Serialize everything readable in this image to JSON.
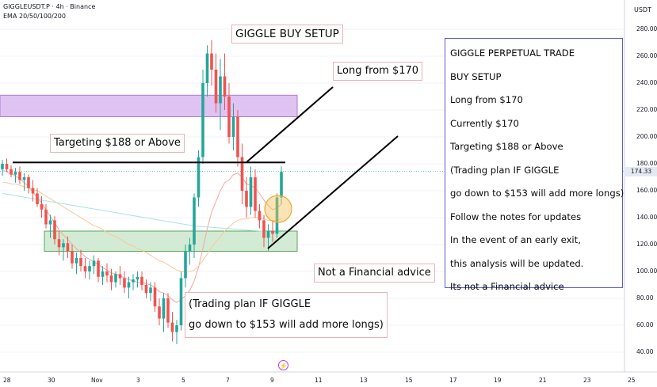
{
  "header": {
    "symbol_line": "GIGGLEUSDT.P · 4h · Binance",
    "indicator_line": "EMA 20/50/100/200",
    "currency": "USDT"
  },
  "annotations": {
    "buy_setup": "GIGGLE BUY SETUP",
    "long_from": "Long from $170",
    "targeting": "Targeting $188 or Above",
    "not_advice": "Not a Financial advice",
    "plan_line1": "(Trading plan IF GIGGLE",
    "plan_line2": "go down to $153 will add more longs)"
  },
  "trade_box": {
    "lines": [
      "GIGGLE PERPETUAL TRADE",
      "BUY SETUP",
      "Long from $170",
      "Currently $170",
      "Targeting $188 or Above",
      "(Trading plan IF GIGGLE",
      "go down to $153 will add more longs)",
      "Follow the notes for updates",
      "In the event of an early exit,",
      "this analysis will be updated.",
      "Its not a Financial advice"
    ]
  },
  "icons": {
    "events": "lightning-icon"
  },
  "colors": {
    "up": "#26a69a",
    "down": "#ef5350",
    "target_zone": "#d9b8f0",
    "entry_zone": "#c8e6c9",
    "ema_fast": "#f4a6a0",
    "ema_slow": "#f9c89a"
  },
  "chart_data": {
    "type": "candlestick",
    "y_axis": {
      "range": [
        30,
        290
      ],
      "ticks": [
        "280.00",
        "260.00",
        "240.00",
        "220.00",
        "200.00",
        "180.00",
        "160.00",
        "140.00",
        "120.00",
        "100.00",
        "80.00",
        "60.00",
        "40.00"
      ],
      "current_price_label": "174.33",
      "current_price": 174.33
    },
    "x_axis": {
      "ticks": [
        "28",
        "30",
        "Nov",
        "3",
        "5",
        "7",
        "9",
        "11",
        "13",
        "15",
        "17",
        "19",
        "21",
        "23",
        "25"
      ]
    },
    "zones": [
      {
        "name": "target-zone",
        "low": 215,
        "high": 231
      },
      {
        "name": "entry-zone",
        "low": 115,
        "high": 130
      }
    ],
    "lines": [
      {
        "name": "resistance-line",
        "price": 181
      }
    ],
    "candles": [
      [
        176,
        183,
        171,
        180
      ],
      [
        180,
        184,
        174,
        176
      ],
      [
        176,
        179,
        170,
        172
      ],
      [
        172,
        177,
        166,
        174
      ],
      [
        174,
        178,
        165,
        168
      ],
      [
        168,
        173,
        160,
        170
      ],
      [
        170,
        172,
        158,
        162
      ],
      [
        162,
        168,
        152,
        158
      ],
      [
        158,
        162,
        148,
        150
      ],
      [
        150,
        156,
        140,
        146
      ],
      [
        146,
        150,
        132,
        135
      ],
      [
        135,
        142,
        125,
        138
      ],
      [
        138,
        141,
        120,
        124
      ],
      [
        124,
        130,
        112,
        118
      ],
      [
        118,
        124,
        108,
        121
      ],
      [
        121,
        126,
        110,
        115
      ],
      [
        115,
        120,
        102,
        106
      ],
      [
        106,
        114,
        98,
        110
      ],
      [
        110,
        116,
        100,
        104
      ],
      [
        104,
        110,
        95,
        100
      ],
      [
        100,
        108,
        94,
        104
      ],
      [
        104,
        112,
        98,
        108
      ],
      [
        108,
        110,
        92,
        96
      ],
      [
        96,
        104,
        90,
        100
      ],
      [
        100,
        106,
        92,
        97
      ],
      [
        97,
        102,
        86,
        92
      ],
      [
        92,
        100,
        88,
        98
      ],
      [
        98,
        104,
        90,
        95
      ],
      [
        95,
        100,
        84,
        88
      ],
      [
        88,
        96,
        80,
        92
      ],
      [
        92,
        98,
        86,
        94
      ],
      [
        94,
        100,
        88,
        96
      ],
      [
        96,
        100,
        86,
        90
      ],
      [
        90,
        94,
        80,
        84
      ],
      [
        84,
        92,
        78,
        88
      ],
      [
        88,
        92,
        70,
        74
      ],
      [
        74,
        80,
        60,
        65
      ],
      [
        65,
        84,
        55,
        80
      ],
      [
        80,
        84,
        58,
        62
      ],
      [
        62,
        70,
        48,
        55
      ],
      [
        55,
        64,
        46,
        60
      ],
      [
        60,
        100,
        56,
        95
      ],
      [
        95,
        120,
        88,
        115
      ],
      [
        115,
        125,
        105,
        120
      ],
      [
        120,
        158,
        110,
        155
      ],
      [
        155,
        190,
        148,
        185
      ],
      [
        185,
        250,
        180,
        240
      ],
      [
        240,
        268,
        230,
        262
      ],
      [
        262,
        272,
        238,
        250
      ],
      [
        250,
        262,
        218,
        225
      ],
      [
        225,
        258,
        205,
        245
      ],
      [
        245,
        262,
        220,
        230
      ],
      [
        230,
        240,
        195,
        200
      ],
      [
        200,
        225,
        190,
        215
      ],
      [
        215,
        220,
        178,
        185
      ],
      [
        185,
        195,
        150,
        160
      ],
      [
        160,
        170,
        140,
        148
      ],
      [
        148,
        178,
        142,
        170
      ],
      [
        170,
        176,
        140,
        145
      ],
      [
        145,
        150,
        132,
        138
      ],
      [
        138,
        142,
        118,
        125
      ],
      [
        125,
        135,
        115,
        130
      ],
      [
        130,
        138,
        122,
        128
      ],
      [
        128,
        158,
        125,
        155
      ],
      [
        155,
        178,
        150,
        174
      ]
    ],
    "ema_series": [
      {
        "name": "EMA 20",
        "values": [
          175,
          174,
          173,
          171,
          169,
          166,
          163,
          159,
          155,
          151,
          146,
          141,
          136,
          131,
          127,
          124,
          120,
          117,
          114,
          111,
          109,
          107,
          105,
          103,
          101,
          99,
          98,
          97,
          95,
          94,
          93,
          92,
          92,
          91,
          90,
          88,
          85,
          84,
          82,
          79,
          77,
          79,
          82,
          86,
          93,
          103,
          117,
          132,
          144,
          152,
          160,
          166,
          168,
          172,
          173,
          170,
          165,
          164,
          162,
          158,
          153,
          149,
          146,
          147,
          150
        ]
      },
      {
        "name": "EMA 50",
        "values": [
          166,
          166,
          165,
          165,
          164,
          163,
          162,
          161,
          160,
          158,
          156,
          154,
          152,
          150,
          148,
          146,
          144,
          142,
          140,
          138,
          136,
          134,
          133,
          131,
          129,
          127,
          126,
          124,
          122,
          120,
          119,
          117,
          116,
          114,
          112,
          110,
          108,
          107,
          105,
          103,
          101,
          100,
          100,
          100,
          101,
          104,
          108,
          113,
          118,
          122,
          126,
          130,
          133,
          136,
          138,
          139,
          139,
          140,
          140,
          140,
          139,
          138,
          138,
          138,
          139
        ]
      }
    ]
  }
}
